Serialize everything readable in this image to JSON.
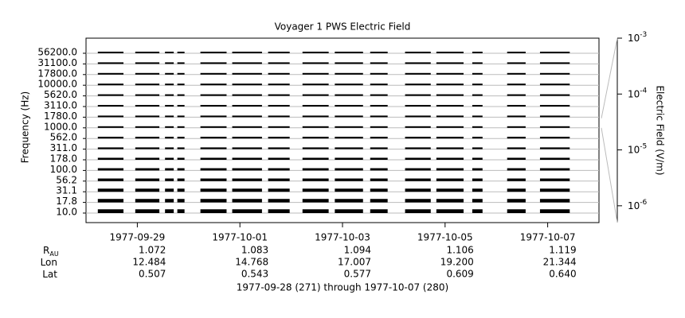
{
  "chart_data": {
    "type": "stacked-spectra",
    "title": "Voyager 1 PWS Electric Field",
    "ylabel": "Frequency (Hz)",
    "y2label": "Electric Field (V/m)",
    "categories": [
      "10.0",
      "17.8",
      "31.1",
      "56.2",
      "100.0",
      "178.0",
      "311.0",
      "562.0",
      "1000.0",
      "1780.0",
      "3110.0",
      "5620.0",
      "10000.0",
      "17800.0",
      "31100.0",
      "56200.0"
    ],
    "series": [
      {
        "name": "Electric Field",
        "color": "#000000",
        "values": [
          1e-05,
          8e-06,
          6e-06,
          4e-06,
          3e-06,
          2.5e-06,
          2e-06,
          2e-06,
          1.5e-06,
          1e-06,
          1e-06,
          1e-06,
          1e-06,
          1e-06,
          1e-06,
          1e-06
        ]
      }
    ],
    "segments": [
      [
        271.23,
        271.73
      ],
      [
        271.96,
        272.43
      ],
      [
        272.54,
        272.71
      ],
      [
        272.78,
        272.92
      ],
      [
        273.23,
        273.74
      ],
      [
        273.85,
        274.43
      ],
      [
        274.55,
        274.97
      ],
      [
        275.22,
        275.73
      ],
      [
        275.85,
        276.4
      ],
      [
        276.54,
        276.88
      ],
      [
        277.22,
        277.72
      ],
      [
        277.83,
        278.36
      ],
      [
        278.53,
        278.73
      ],
      [
        279.21,
        279.57
      ],
      [
        279.85,
        280.43
      ]
    ],
    "xlim": [
      271,
      281
    ],
    "xticks": [
      {
        "value": 272,
        "label": "1977-09-29"
      },
      {
        "value": 274,
        "label": "1977-10-01"
      },
      {
        "value": 276,
        "label": "1977-10-03"
      },
      {
        "value": 278,
        "label": "1977-10-05"
      },
      {
        "value": 280,
        "label": "1977-10-07"
      }
    ],
    "y2lim": [
      5e-07,
      0.001
    ],
    "y2log": true,
    "y2ticks": [
      {
        "value": 1e-06,
        "label": "10",
        "exponent": "-6"
      },
      {
        "value": 1e-05,
        "label": "10",
        "exponent": "-5"
      },
      {
        "value": 0.0001,
        "label": "10",
        "exponent": "-4"
      },
      {
        "value": 0.001,
        "label": "10",
        "exponent": "-3"
      }
    ],
    "ephemeris": [
      {
        "label": "R",
        "label_sub": "AU",
        "values": [
          "1.072",
          "1.083",
          "1.094",
          "1.106",
          "1.119"
        ]
      },
      {
        "label": "Lon",
        "values": [
          "12.484",
          "14.768",
          "17.007",
          "19.200",
          "21.344"
        ]
      },
      {
        "label": "Lat",
        "values": [
          "0.507",
          "0.543",
          "0.577",
          "0.609",
          "0.640"
        ]
      }
    ],
    "footer": "1977-09-28 (271) through 1977-10-07 (280)"
  }
}
